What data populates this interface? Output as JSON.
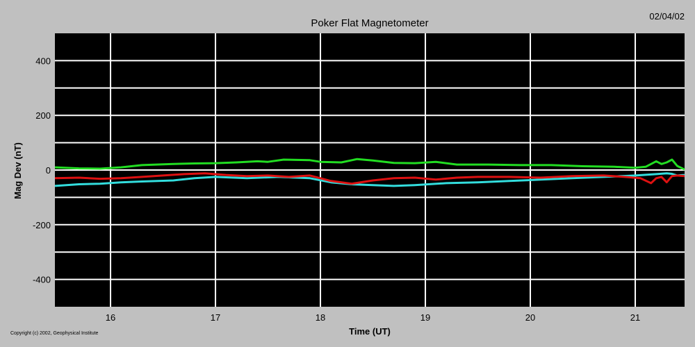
{
  "date_label": "02/04/02",
  "copyright": "Copyright (c) 2002, Geophysical Institute",
  "colors": {
    "background": "#c0c0c0",
    "plot_background": "#000000",
    "grid": "#ffffff",
    "series_green": "#22dd22",
    "series_cyan": "#33dddd",
    "series_red": "#dd1111"
  },
  "chart_data": {
    "type": "line",
    "title": "Poker Flat Magnetometer",
    "xlabel": "Time (UT)",
    "ylabel": "Mag Dev (nT)",
    "xlim": [
      15.47,
      21.47
    ],
    "ylim": [
      -500,
      500
    ],
    "xticks": [
      16,
      17,
      18,
      19,
      20,
      21
    ],
    "yticks": [
      -400,
      -200,
      0,
      200,
      400
    ],
    "grid": true,
    "series": [
      {
        "color": "#22dd22",
        "x": [
          15.47,
          15.7,
          15.9,
          16.1,
          16.3,
          16.6,
          16.8,
          17.0,
          17.2,
          17.4,
          17.5,
          17.65,
          17.9,
          18.0,
          18.2,
          18.35,
          18.5,
          18.7,
          18.9,
          19.1,
          19.3,
          19.6,
          19.9,
          20.2,
          20.5,
          20.8,
          21.0,
          21.1,
          21.2,
          21.25,
          21.3,
          21.35,
          21.4,
          21.47
        ],
        "y": [
          10,
          6,
          5,
          10,
          18,
          22,
          24,
          25,
          28,
          32,
          30,
          38,
          36,
          30,
          28,
          40,
          35,
          26,
          25,
          30,
          20,
          20,
          18,
          18,
          14,
          12,
          8,
          12,
          32,
          22,
          28,
          38,
          15,
          2
        ]
      },
      {
        "color": "#33dddd",
        "x": [
          15.47,
          15.7,
          15.9,
          16.1,
          16.3,
          16.6,
          16.8,
          17.0,
          17.3,
          17.6,
          17.9,
          18.1,
          18.3,
          18.5,
          18.7,
          18.9,
          19.2,
          19.5,
          19.8,
          20.1,
          20.4,
          20.7,
          21.0,
          21.2,
          21.3,
          21.35,
          21.4,
          21.47
        ],
        "y": [
          -58,
          -52,
          -50,
          -45,
          -42,
          -38,
          -30,
          -25,
          -30,
          -25,
          -30,
          -45,
          -52,
          -55,
          -58,
          -55,
          -48,
          -45,
          -40,
          -35,
          -30,
          -25,
          -20,
          -15,
          -12,
          -14,
          -20,
          -18
        ]
      },
      {
        "color": "#dd1111",
        "x": [
          15.47,
          15.7,
          15.9,
          16.1,
          16.3,
          16.5,
          16.7,
          16.9,
          17.1,
          17.3,
          17.5,
          17.7,
          17.9,
          18.1,
          18.3,
          18.5,
          18.7,
          18.9,
          19.1,
          19.3,
          19.5,
          19.8,
          20.1,
          20.4,
          20.7,
          20.9,
          21.05,
          21.15,
          21.2,
          21.25,
          21.3,
          21.35,
          21.4,
          21.47
        ],
        "y": [
          -30,
          -28,
          -32,
          -30,
          -25,
          -20,
          -15,
          -12,
          -18,
          -22,
          -20,
          -25,
          -20,
          -40,
          -50,
          -38,
          -30,
          -28,
          -35,
          -28,
          -25,
          -25,
          -28,
          -22,
          -20,
          -25,
          -30,
          -48,
          -30,
          -25,
          -45,
          -22,
          -20,
          -22
        ]
      }
    ]
  }
}
